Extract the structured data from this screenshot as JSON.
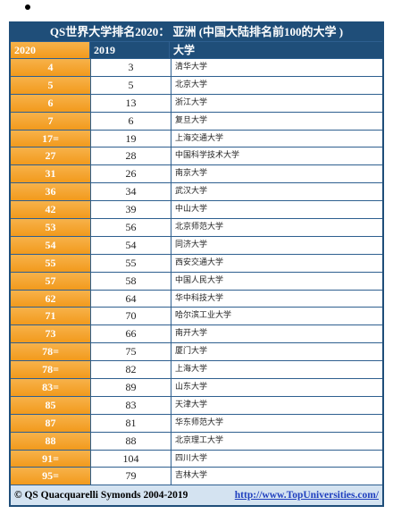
{
  "table": {
    "title": "QS世界大学排名2020： 亚洲 (中国大陆排名前100的大学 )",
    "header": [
      "2020",
      "2019",
      "大学"
    ],
    "rows": [
      [
        "4",
        "3",
        "清华大学"
      ],
      [
        "5",
        "5",
        "北京大学"
      ],
      [
        "6",
        "13",
        "浙江大学"
      ],
      [
        "7",
        "6",
        "复旦大学"
      ],
      [
        "17=",
        "19",
        "上海交通大学"
      ],
      [
        "27",
        "28",
        "中国科学技术大学"
      ],
      [
        "31",
        "26",
        "南京大学"
      ],
      [
        "36",
        "34",
        "武汉大学"
      ],
      [
        "42",
        "39",
        "中山大学"
      ],
      [
        "53",
        "56",
        "北京师范大学"
      ],
      [
        "54",
        "54",
        "同济大学"
      ],
      [
        "55",
        "55",
        "西安交通大学"
      ],
      [
        "57",
        "58",
        "中国人民大学"
      ],
      [
        "62",
        "64",
        "华中科技大学"
      ],
      [
        "71",
        "70",
        "哈尔滨工业大学"
      ],
      [
        "73",
        "66",
        "南开大学"
      ],
      [
        "78=",
        "75",
        "厦门大学"
      ],
      [
        "78=",
        "82",
        "上海大学"
      ],
      [
        "83=",
        "89",
        "山东大学"
      ],
      [
        "85",
        "83",
        "天津大学"
      ],
      [
        "87",
        "81",
        "华东师范大学"
      ],
      [
        "88",
        "88",
        "北京理工大学"
      ],
      [
        "91=",
        "104",
        "四川大学"
      ],
      [
        "95=",
        "79",
        "吉林大学"
      ]
    ],
    "footer": {
      "copyright": "© QS Quacquarelli Symonds 2004-2019",
      "link": "http://www.TopUniversities.com/"
    }
  }
}
